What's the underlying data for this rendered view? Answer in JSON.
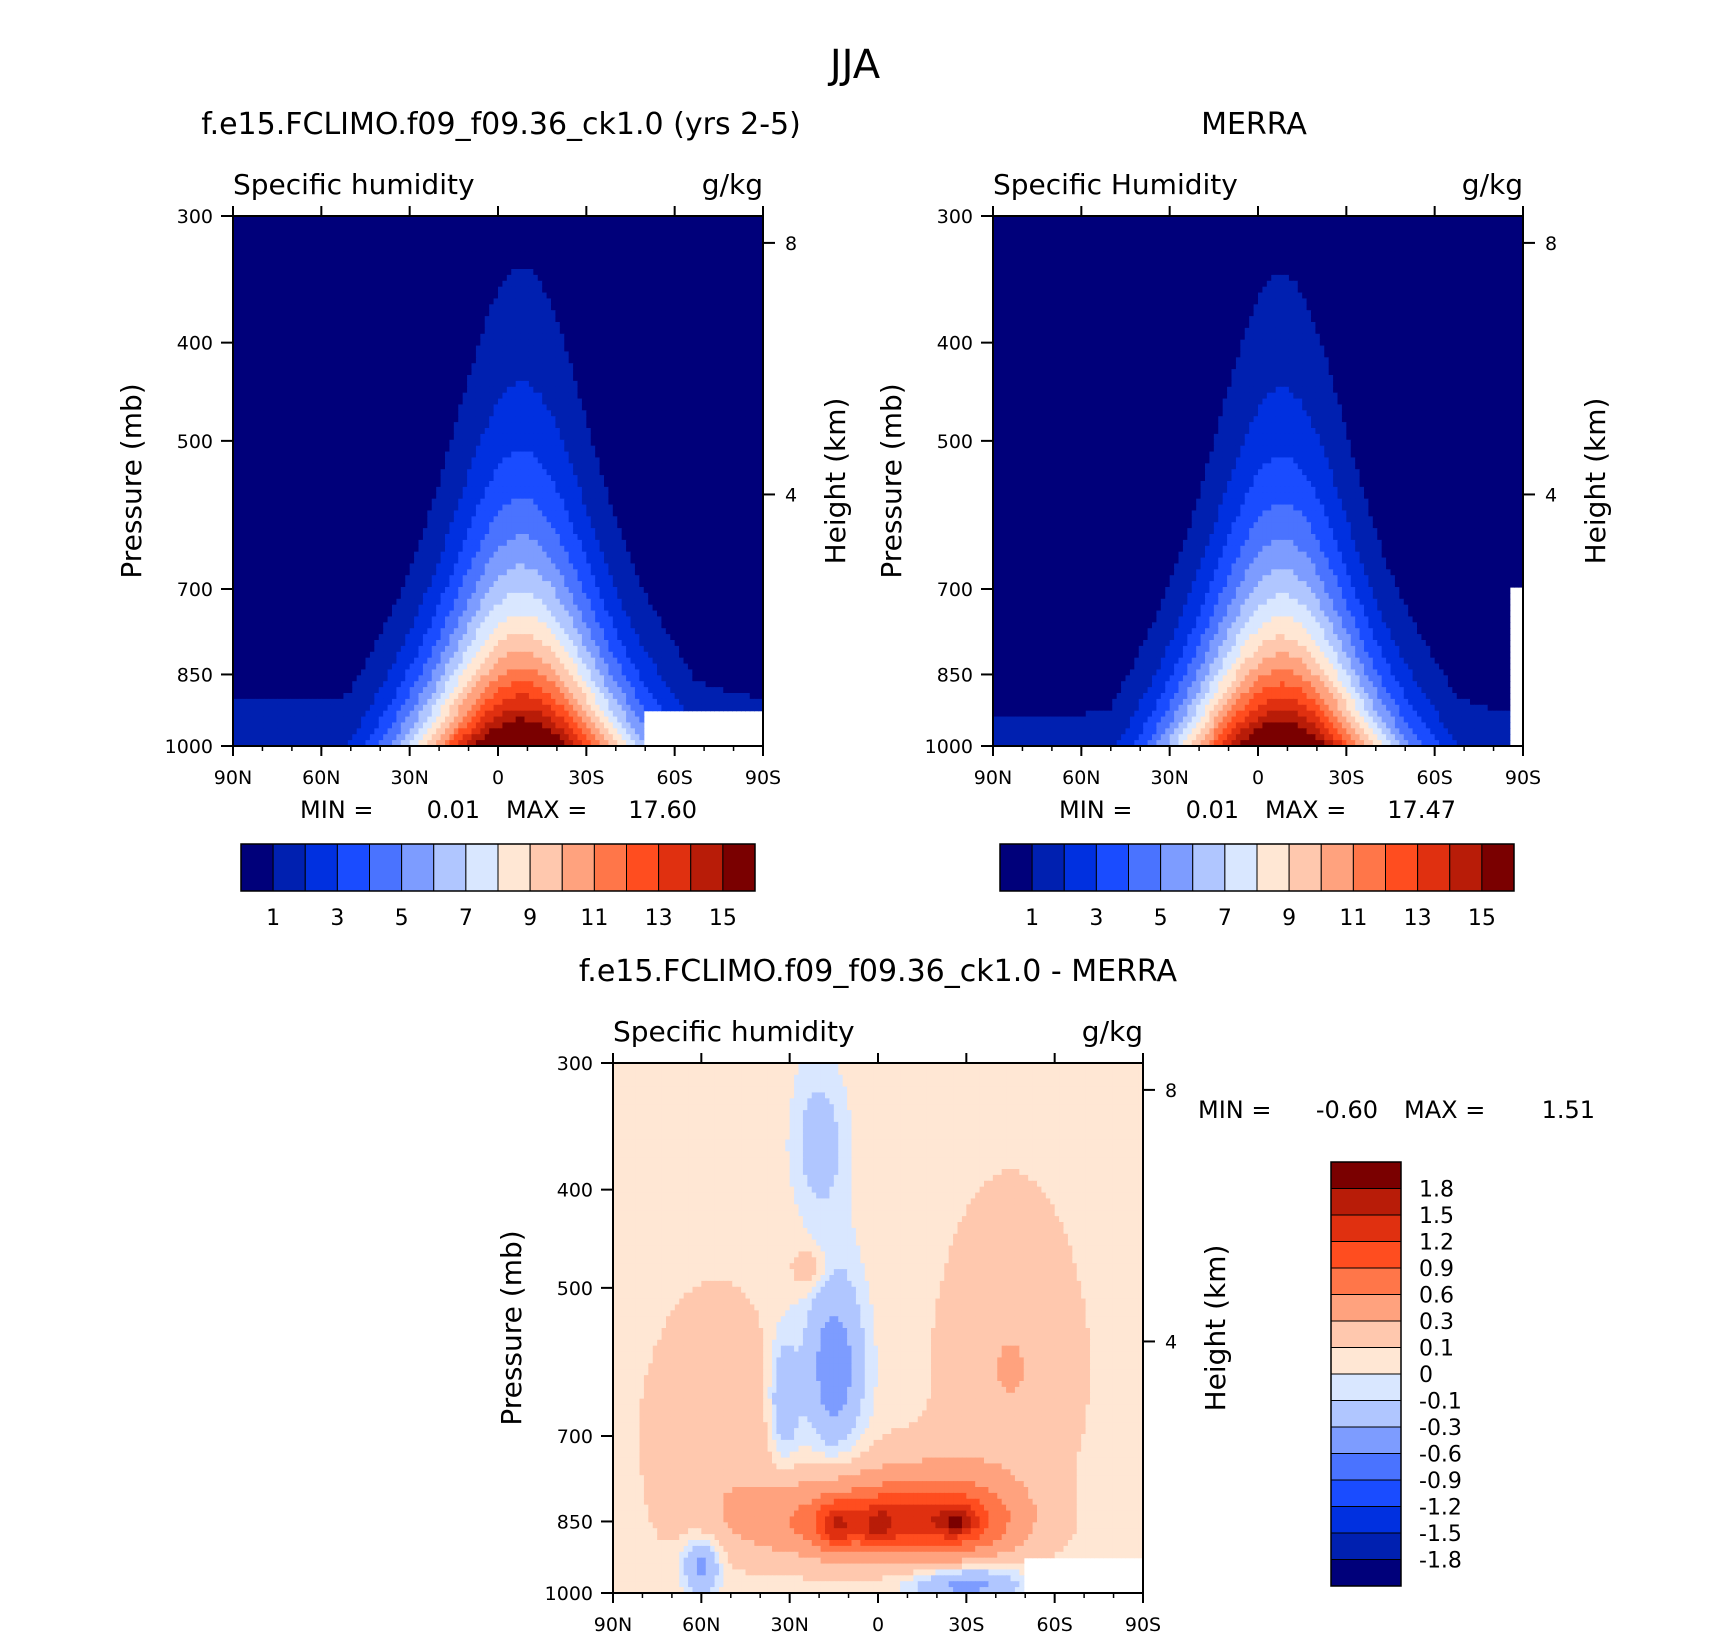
{
  "suptitle": "JJA",
  "colors": {
    "abs": [
      "#00007a",
      "#0020b0",
      "#0030e0",
      "#1a4cff",
      "#4a73ff",
      "#7d9cff",
      "#b0c6ff",
      "#d9e7ff",
      "#ffe7d4",
      "#ffc8ae",
      "#ffa27e",
      "#ff7649",
      "#ff4d1f",
      "#e03010",
      "#b81c08",
      "#7a0000"
    ],
    "diff": [
      "#00007a",
      "#0020b0",
      "#0030e0",
      "#1a4cff",
      "#4a73ff",
      "#7d9cff",
      "#b0c6ff",
      "#d9e7ff",
      "#ffe7d4",
      "#ffc8ae",
      "#ffa27e",
      "#ff7649",
      "#ff4d1f",
      "#e03010",
      "#b81c08",
      "#7a0000"
    ]
  },
  "chart_data": [
    {
      "type": "heatmap",
      "title": "f.e15.FCLIMO.f09_f09.36_ck1.0 (yrs 2-5)",
      "left_label": "Specific humidity",
      "right_label": "g/kg",
      "xlabel": "",
      "ylabel": "Pressure (mb)",
      "y2label": "Height (km)",
      "x_ticks": [
        "90N",
        "60N",
        "30N",
        "0",
        "30S",
        "60S",
        "90S"
      ],
      "x_tick_values": [
        90,
        60,
        30,
        0,
        -30,
        -60,
        -90
      ],
      "y_ticks": [
        "300",
        "400",
        "500",
        "700",
        "850",
        "1000"
      ],
      "y_tick_values": [
        300,
        400,
        500,
        700,
        850,
        1000
      ],
      "y2_ticks": [
        "8",
        "4"
      ],
      "y2_tick_values": [
        8,
        4
      ],
      "ylim": [
        1000,
        300
      ],
      "xlim": [
        90,
        -90
      ],
      "min_text": "MIN =",
      "min_value": "0.01",
      "max_text": "MAX =",
      "max_value": "17.60",
      "colorbar_labels": [
        "1",
        "3",
        "5",
        "7",
        "9",
        "11",
        "13",
        "15"
      ],
      "colorbar_levels": [
        1,
        2,
        3,
        4,
        5,
        6,
        7,
        8,
        9,
        10,
        11,
        12,
        13,
        14,
        15
      ],
      "field": {
        "peak_lat": -8,
        "peak_value": 17.6,
        "sfc_equator_value": 17.0,
        "sfc_lat_width": 40,
        "sfc_floor": 2.0,
        "scale_height_pressure": 0.16,
        "missing_region": {
          "lat_from": -50,
          "lat_to": -90,
          "p_from": 925,
          "p_to": 1000
        }
      }
    },
    {
      "type": "heatmap",
      "title": "MERRA",
      "left_label": "Specific Humidity",
      "right_label": "g/kg",
      "xlabel": "",
      "ylabel": "Pressure (mb)",
      "y2label": "Height (km)",
      "x_ticks": [
        "90N",
        "60N",
        "30N",
        "0",
        "30S",
        "60S",
        "90S"
      ],
      "x_tick_values": [
        90,
        60,
        30,
        0,
        -30,
        -60,
        -90
      ],
      "y_ticks": [
        "300",
        "400",
        "500",
        "700",
        "850",
        "1000"
      ],
      "y_tick_values": [
        300,
        400,
        500,
        700,
        850,
        1000
      ],
      "y2_ticks": [
        "8",
        "4"
      ],
      "y2_tick_values": [
        8,
        4
      ],
      "ylim": [
        1000,
        300
      ],
      "xlim": [
        90,
        -90
      ],
      "min_text": "MIN =",
      "min_value": "0.01",
      "max_text": "MAX =",
      "max_value": "17.47",
      "colorbar_labels": [
        "1",
        "3",
        "5",
        "7",
        "9",
        "11",
        "13",
        "15"
      ],
      "colorbar_levels": [
        1,
        2,
        3,
        4,
        5,
        6,
        7,
        8,
        9,
        10,
        11,
        12,
        13,
        14,
        15
      ],
      "field": {
        "peak_lat": -8,
        "peak_value": 17.47,
        "sfc_equator_value": 16.8,
        "sfc_lat_width": 38,
        "sfc_floor": 1.6,
        "scale_height_pressure": 0.155,
        "missing_region": {
          "lat_from": -85,
          "lat_to": -90,
          "p_from": 700,
          "p_to": 1000
        }
      }
    },
    {
      "type": "heatmap",
      "title": "f.e15.FCLIMO.f09_f09.36_ck1.0 - MERRA",
      "left_label": "Specific humidity",
      "right_label": "g/kg",
      "xlabel": "",
      "ylabel": "Pressure (mb)",
      "y2label": "Height (km)",
      "x_ticks": [
        "90N",
        "60N",
        "30N",
        "0",
        "30S",
        "60S",
        "90S"
      ],
      "x_tick_values": [
        90,
        60,
        30,
        0,
        -30,
        -60,
        -90
      ],
      "y_ticks": [
        "300",
        "400",
        "500",
        "700",
        "850",
        "1000"
      ],
      "y_tick_values": [
        300,
        400,
        500,
        700,
        850,
        1000
      ],
      "y2_ticks": [
        "8",
        "4"
      ],
      "y2_tick_values": [
        8,
        4
      ],
      "ylim": [
        1000,
        300
      ],
      "xlim": [
        90,
        -90
      ],
      "min_text": "MIN =",
      "min_value": "-0.60",
      "max_text": "MAX =",
      "max_value": "1.51",
      "colorbar_labels": [
        "1.8",
        "1.5",
        "1.2",
        "0.9",
        "0.6",
        "0.3",
        "0.1",
        "0",
        "-0.1",
        "-0.3",
        "-0.6",
        "-0.9",
        "-1.2",
        "-1.5",
        "-1.8"
      ],
      "colorbar_levels": [
        -1.8,
        -1.5,
        -1.2,
        -0.9,
        -0.6,
        -0.3,
        -0.1,
        0,
        0.1,
        0.3,
        0.6,
        0.9,
        1.2,
        1.5,
        1.8
      ],
      "field": {
        "background": 0.06,
        "blobs": [
          {
            "lat": 10,
            "p": 850,
            "dlat": 34,
            "dp": 70,
            "amp": 0.7
          },
          {
            "lat": -25,
            "p": 850,
            "dlat": 22,
            "dp": 70,
            "amp": 0.8
          },
          {
            "lat": -15,
            "p": 820,
            "dlat": 30,
            "dp": 90,
            "amp": 0.3
          },
          {
            "lat": 14,
            "p": 860,
            "dlat": 6,
            "dp": 45,
            "amp": 0.7
          },
          {
            "lat": 0,
            "p": 860,
            "dlat": 6,
            "dp": 40,
            "amp": 0.6
          },
          {
            "lat": -27,
            "p": 850,
            "dlat": 6,
            "dp": 25,
            "amp": 0.6
          },
          {
            "lat": -45,
            "p": 600,
            "dlat": 20,
            "dp": 160,
            "amp": 0.25
          },
          {
            "lat": 55,
            "p": 700,
            "dlat": 20,
            "dp": 160,
            "amp": 0.22
          },
          {
            "lat": 15,
            "p": 600,
            "dlat": 10,
            "dp": 120,
            "amp": -0.5
          },
          {
            "lat": 32,
            "p": 650,
            "dlat": 5,
            "dp": 90,
            "amp": -0.35
          },
          {
            "lat": 20,
            "p": 360,
            "dlat": 9,
            "dp": 60,
            "amp": -0.25
          },
          {
            "lat": 60,
            "p": 940,
            "dlat": 6,
            "dp": 60,
            "amp": -0.45
          },
          {
            "lat": -30,
            "p": 980,
            "dlat": 18,
            "dp": 40,
            "amp": -0.45
          },
          {
            "lat": 23,
            "p": 480,
            "dlat": 6,
            "dp": 25,
            "amp": 0.2
          }
        ],
        "missing_region": {
          "lat_from": -50,
          "lat_to": -90,
          "p_from": 925,
          "p_to": 1000
        }
      }
    }
  ]
}
